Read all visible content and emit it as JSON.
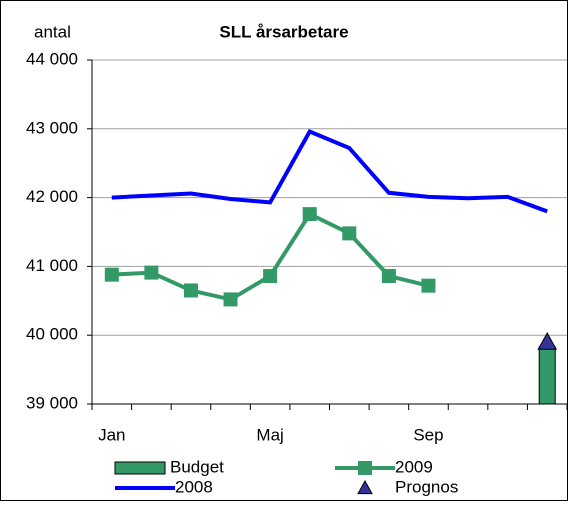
{
  "chart_data": {
    "type": "line",
    "title": "SLL årsarbetare",
    "y_label": "antal",
    "categories": [
      "Jan",
      null,
      null,
      null,
      "Maj",
      null,
      null,
      null,
      "Sep",
      null,
      null,
      null
    ],
    "series": [
      {
        "name": "Budget",
        "kind": "bar",
        "color": "#339966",
        "values": [
          null,
          null,
          null,
          null,
          null,
          null,
          null,
          null,
          null,
          null,
          null,
          39830
        ]
      },
      {
        "name": "2009",
        "kind": "line-square",
        "color": "#339966",
        "values": [
          40880,
          40910,
          40650,
          40520,
          40860,
          41760,
          41480,
          40860,
          40720,
          null,
          null,
          null
        ]
      },
      {
        "name": "2008",
        "kind": "line",
        "color": "#0000ff",
        "values": [
          42000,
          42030,
          42060,
          41980,
          41930,
          42960,
          42720,
          42070,
          42010,
          41990,
          42010,
          41800
        ]
      },
      {
        "name": "Prognos",
        "kind": "triangle",
        "color": "#333399",
        "values": [
          null,
          null,
          null,
          null,
          null,
          null,
          null,
          null,
          null,
          null,
          null,
          39900
        ]
      }
    ],
    "ylim": [
      39000,
      44000
    ],
    "yticks": [
      {
        "value": 39000,
        "label": "39 000"
      },
      {
        "value": 40000,
        "label": "40 000"
      },
      {
        "value": 41000,
        "label": "41 000"
      },
      {
        "value": 42000,
        "label": "42 000"
      },
      {
        "value": 43000,
        "label": "43 000"
      },
      {
        "value": 44000,
        "label": "44 000"
      }
    ],
    "grid": true
  }
}
